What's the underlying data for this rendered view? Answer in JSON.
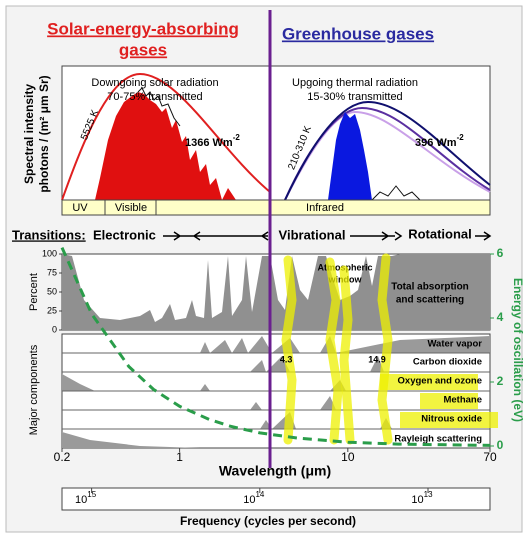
{
  "header": {
    "left_title_lines": [
      "Solar-energy-absorbing",
      "gases"
    ],
    "right_title": "Greenhouse gases"
  },
  "spectrum_panel": {
    "y_label_lines": [
      "Spectral intensity",
      "photons / (m² μm Sr)"
    ],
    "solar": {
      "title": "Downgoing solar radiation",
      "transmitted": "70-75% transmitted",
      "temperature": "5525 K",
      "flux": "1366 Wm",
      "flux_exponent": "-2"
    },
    "thermal": {
      "title": "Upgoing thermal radiation",
      "transmitted": "15-30% transmitted",
      "temperature": "210-310 K",
      "flux": "396 Wm",
      "flux_exponent": "-2"
    },
    "bands": [
      "UV",
      "Visible",
      "Infrared"
    ]
  },
  "transitions": {
    "label": "Transitions:",
    "types": [
      "Electronic",
      "Vibrational",
      "Rotational"
    ]
  },
  "absorption_panel": {
    "y_label": "Percent",
    "ylim": [
      0,
      100
    ],
    "yticks": [
      0,
      25,
      50,
      75,
      100
    ],
    "window_label_lines": [
      "Atmospheric",
      "window"
    ],
    "total_label_lines": [
      "Total absorption",
      "and scattering"
    ]
  },
  "components_panel": {
    "y_label": "Major components",
    "components": [
      "Water vapor",
      "Carbon dioxide",
      "Oxygen and ozone",
      "Methane",
      "Nitrous oxide",
      "Rayleigh scattering"
    ],
    "band_labels": [
      4.3,
      14.9
    ]
  },
  "wavelength_axis": {
    "label": "Wavelength (μm)",
    "log": true,
    "xlim": [
      0.2,
      70
    ],
    "xticks": [
      0.2,
      1,
      10,
      70
    ]
  },
  "frequency_axis": {
    "label": "Frequency (cycles per second)",
    "log": true,
    "xlim": [
      1500000000000000.0,
      4280000000000.0
    ],
    "xticks": [
      {
        "value": 1000000000000000.0,
        "label": "10",
        "exponent": "15"
      },
      {
        "value": 100000000000000.0,
        "label": "10",
        "exponent": "14"
      },
      {
        "value": 10000000000000.0,
        "label": "10",
        "exponent": "13"
      }
    ]
  },
  "energy_axis": {
    "label": "Energy of oscillation (eV)",
    "ylim": [
      0,
      6
    ],
    "yticks": [
      0,
      2,
      4,
      6
    ],
    "color": "#2a9d4a",
    "curve": {
      "x": [
        0.2,
        0.3,
        0.5,
        0.7,
        1,
        1.5,
        2,
        3,
        5,
        10,
        20,
        70
      ],
      "values": [
        6.2,
        4.13,
        2.48,
        1.77,
        1.24,
        0.83,
        0.62,
        0.41,
        0.25,
        0.12,
        0.06,
        0.02
      ]
    }
  }
}
